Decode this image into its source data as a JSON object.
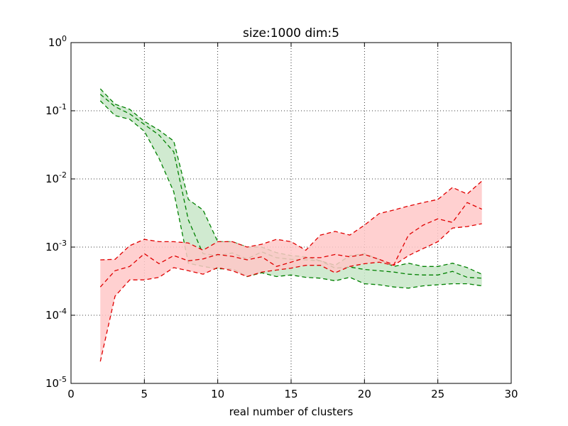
{
  "chart_data": {
    "type": "area",
    "title": "size:1000 dim:5",
    "xlabel": "real number of clusters",
    "ylabel": "",
    "xlim": [
      0,
      30
    ],
    "ylim": [
      1e-05,
      1
    ],
    "yscale": "log",
    "grid": true,
    "x_ticks": [
      0,
      5,
      10,
      15,
      20,
      25,
      30
    ],
    "x_tick_labels": [
      "0",
      "5",
      "10",
      "15",
      "20",
      "25",
      "30"
    ],
    "y_ticks": [
      1e-05,
      0.0001,
      0.001,
      0.01,
      0.1,
      1
    ],
    "y_tick_labels": [
      {
        "base": "10",
        "exp": "-5"
      },
      {
        "base": "10",
        "exp": "-4"
      },
      {
        "base": "10",
        "exp": "-3"
      },
      {
        "base": "10",
        "exp": "-2"
      },
      {
        "base": "10",
        "exp": "-1"
      },
      {
        "base": "10",
        "exp": "0"
      }
    ],
    "x": [
      2,
      3,
      4,
      5,
      6,
      7,
      8,
      9,
      10,
      11,
      12,
      13,
      14,
      15,
      16,
      17,
      18,
      19,
      20,
      21,
      22,
      23,
      24,
      25,
      26,
      27,
      28
    ],
    "series": [
      {
        "color": "#008000",
        "fill": "#c8e6c8",
        "upper": [
          0.21,
          0.125,
          0.105,
          0.07,
          0.052,
          0.036,
          0.005,
          0.0035,
          0.0012,
          0.0012,
          0.001,
          0.001,
          0.00083,
          0.00075,
          0.00072,
          0.00063,
          0.00054,
          0.00075,
          0.0008,
          0.00066,
          0.00052,
          0.00058,
          0.00052,
          0.00052,
          0.00058,
          0.0005,
          0.0004
        ],
        "middle": [
          0.175,
          0.115,
          0.09,
          0.063,
          0.044,
          0.025,
          0.0025,
          0.0008,
          0.00075,
          0.00082,
          0.00067,
          0.00085,
          0.0007,
          0.00066,
          0.00065,
          0.00063,
          0.00049,
          0.00051,
          0.00047,
          0.00045,
          0.00043,
          0.0004,
          0.00039,
          0.00039,
          0.00044,
          0.00036,
          0.00035
        ],
        "lower": [
          0.14,
          0.085,
          0.075,
          0.05,
          0.02,
          0.0065,
          0.00058,
          0.00052,
          0.00048,
          0.00048,
          0.00037,
          0.00042,
          0.00037,
          0.00039,
          0.00036,
          0.00035,
          0.00032,
          0.00036,
          0.00029,
          0.00028,
          0.00026,
          0.00025,
          0.00027,
          0.00028,
          0.00029,
          0.00029,
          0.00027
        ]
      },
      {
        "color": "#e00000",
        "fill": "#ffc8c8",
        "upper": [
          0.00065,
          0.00066,
          0.00105,
          0.0013,
          0.0012,
          0.0012,
          0.00115,
          0.0009,
          0.0012,
          0.0012,
          0.001,
          0.0011,
          0.0013,
          0.0012,
          0.0009,
          0.0015,
          0.0017,
          0.0015,
          0.0021,
          0.0031,
          0.0035,
          0.004,
          0.0045,
          0.005,
          0.0075,
          0.006,
          0.0093
        ],
        "middle": [
          0.00026,
          0.00045,
          0.00052,
          0.0008,
          0.00057,
          0.00075,
          0.00063,
          0.00067,
          0.00078,
          0.00073,
          0.00065,
          0.00072,
          0.00052,
          0.0006,
          0.0007,
          0.0007,
          0.00078,
          0.00072,
          0.00078,
          0.00066,
          0.00055,
          0.0015,
          0.0021,
          0.0026,
          0.0023,
          0.0045,
          0.0036
        ],
        "lower": [
          2.1e-05,
          0.00019,
          0.00033,
          0.00033,
          0.00036,
          0.0005,
          0.00045,
          0.0004,
          0.0005,
          0.00045,
          0.00037,
          0.00043,
          0.00046,
          0.00049,
          0.00054,
          0.00054,
          0.00042,
          0.00052,
          0.00057,
          0.0006,
          0.00054,
          0.00075,
          0.00095,
          0.0012,
          0.0019,
          0.002,
          0.0022
        ]
      }
    ]
  }
}
